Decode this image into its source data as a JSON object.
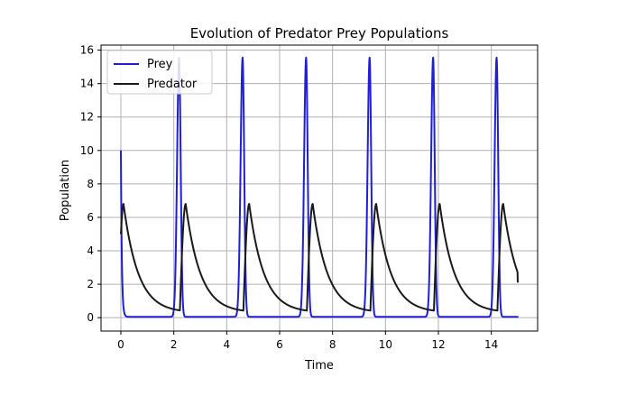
{
  "chart_data": {
    "type": "line",
    "title": "Evolution of Predator Prey Populations",
    "xlabel": "Time",
    "ylabel": "Population",
    "xlim": [
      -0.75,
      15.75
    ],
    "ylim": [
      -0.8,
      16.3
    ],
    "xticks": [
      0,
      2,
      4,
      6,
      8,
      10,
      12,
      14
    ],
    "yticks": [
      0,
      2,
      4,
      6,
      8,
      10,
      12,
      14,
      16
    ],
    "grid": true,
    "legend_position": "top-left",
    "model": {
      "t_end": 15,
      "initial": {
        "prey": 10,
        "predator": 5
      },
      "peaks": {
        "prey": {
          "t": [
            2.2,
            4.6,
            7.0,
            9.4,
            11.8,
            14.2
          ],
          "value": 15.5
        },
        "predator": {
          "t": [
            0.1,
            2.45,
            4.85,
            7.25,
            9.65,
            12.05,
            14.45
          ],
          "value": 6.8
        }
      },
      "final": {
        "prey": 0.0,
        "predator": 2.1
      }
    },
    "series": [
      {
        "name": "Prey",
        "color": "#1f1fd6"
      },
      {
        "name": "Predator",
        "color": "#1a1a1a"
      }
    ]
  }
}
